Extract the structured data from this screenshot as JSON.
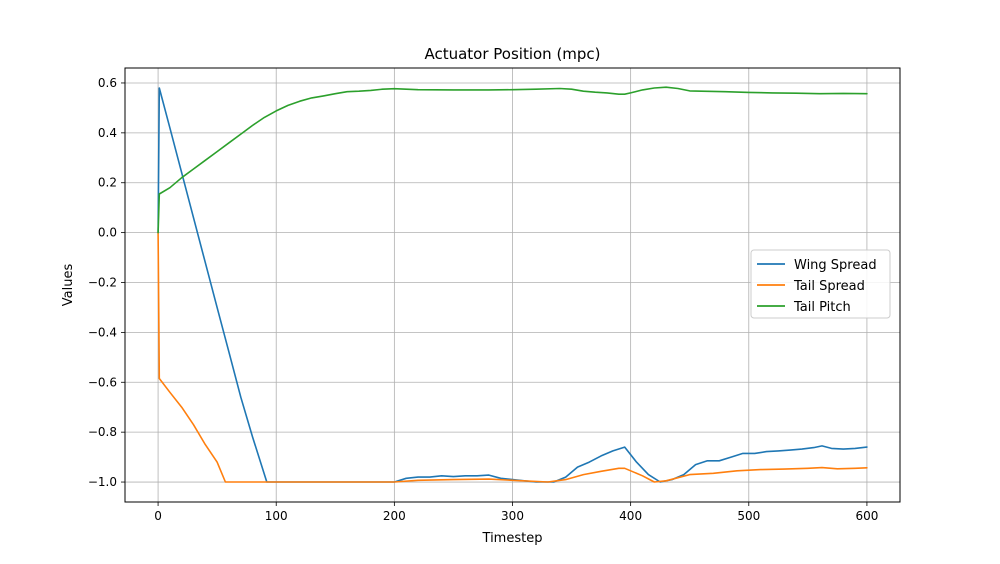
{
  "chart_data": {
    "type": "line",
    "title": "Actuator Position (mpc)",
    "xlabel": "Timestep",
    "ylabel": "Values",
    "xlim": [
      -28,
      628
    ],
    "ylim": [
      -1.08,
      0.66
    ],
    "x_ticks": [
      0,
      100,
      200,
      300,
      400,
      500,
      600
    ],
    "y_ticks": [
      0.6,
      0.4,
      0.2,
      0.0,
      -0.2,
      -0.4,
      -0.6,
      -0.8,
      -1.0
    ],
    "y_tick_labels": [
      "0.6",
      "0.4",
      "0.2",
      "0.0",
      "−0.2",
      "−0.4",
      "−0.6",
      "−0.8",
      "−1.0"
    ],
    "grid": true,
    "legend_position": "center-right",
    "series": [
      {
        "name": "Wing Spread",
        "color": "#1f77b4",
        "points": [
          [
            0,
            0.0
          ],
          [
            1,
            0.58
          ],
          [
            10,
            0.42
          ],
          [
            20,
            0.24
          ],
          [
            30,
            0.06
          ],
          [
            40,
            -0.12
          ],
          [
            50,
            -0.3
          ],
          [
            60,
            -0.48
          ],
          [
            70,
            -0.66
          ],
          [
            80,
            -0.82
          ],
          [
            92,
            -1.0
          ],
          [
            100,
            -1.0
          ],
          [
            150,
            -1.0
          ],
          [
            200,
            -1.0
          ],
          [
            210,
            -0.985
          ],
          [
            220,
            -0.98
          ],
          [
            230,
            -0.98
          ],
          [
            240,
            -0.975
          ],
          [
            250,
            -0.978
          ],
          [
            260,
            -0.975
          ],
          [
            270,
            -0.975
          ],
          [
            280,
            -0.972
          ],
          [
            290,
            -0.985
          ],
          [
            300,
            -0.99
          ],
          [
            310,
            -0.995
          ],
          [
            320,
            -1.0
          ],
          [
            335,
            -1.0
          ],
          [
            345,
            -0.98
          ],
          [
            355,
            -0.94
          ],
          [
            365,
            -0.92
          ],
          [
            375,
            -0.895
          ],
          [
            385,
            -0.875
          ],
          [
            395,
            -0.86
          ],
          [
            405,
            -0.92
          ],
          [
            415,
            -0.97
          ],
          [
            425,
            -1.0
          ],
          [
            435,
            -0.99
          ],
          [
            445,
            -0.97
          ],
          [
            455,
            -0.93
          ],
          [
            465,
            -0.915
          ],
          [
            475,
            -0.915
          ],
          [
            485,
            -0.9
          ],
          [
            495,
            -0.885
          ],
          [
            505,
            -0.885
          ],
          [
            515,
            -0.878
          ],
          [
            525,
            -0.875
          ],
          [
            535,
            -0.872
          ],
          [
            545,
            -0.868
          ],
          [
            555,
            -0.862
          ],
          [
            562,
            -0.855
          ],
          [
            570,
            -0.865
          ],
          [
            580,
            -0.868
          ],
          [
            590,
            -0.865
          ],
          [
            600,
            -0.86
          ]
        ]
      },
      {
        "name": "Tail Spread",
        "color": "#ff7f0e",
        "points": [
          [
            0,
            0.0
          ],
          [
            1,
            -0.585
          ],
          [
            10,
            -0.64
          ],
          [
            20,
            -0.7
          ],
          [
            30,
            -0.77
          ],
          [
            40,
            -0.85
          ],
          [
            50,
            -0.92
          ],
          [
            57,
            -1.0
          ],
          [
            100,
            -1.0
          ],
          [
            150,
            -1.0
          ],
          [
            200,
            -1.0
          ],
          [
            220,
            -0.993
          ],
          [
            250,
            -0.99
          ],
          [
            280,
            -0.988
          ],
          [
            300,
            -0.993
          ],
          [
            330,
            -1.0
          ],
          [
            345,
            -0.99
          ],
          [
            360,
            -0.97
          ],
          [
            375,
            -0.957
          ],
          [
            390,
            -0.945
          ],
          [
            395,
            -0.945
          ],
          [
            410,
            -0.975
          ],
          [
            420,
            -1.0
          ],
          [
            430,
            -0.995
          ],
          [
            450,
            -0.97
          ],
          [
            470,
            -0.965
          ],
          [
            490,
            -0.955
          ],
          [
            510,
            -0.95
          ],
          [
            530,
            -0.948
          ],
          [
            550,
            -0.945
          ],
          [
            562,
            -0.942
          ],
          [
            575,
            -0.947
          ],
          [
            590,
            -0.945
          ],
          [
            600,
            -0.943
          ]
        ]
      },
      {
        "name": "Tail Pitch",
        "color": "#2ca02c",
        "points": [
          [
            0,
            0.0
          ],
          [
            1,
            0.155
          ],
          [
            10,
            0.18
          ],
          [
            20,
            0.22
          ],
          [
            30,
            0.255
          ],
          [
            40,
            0.29
          ],
          [
            50,
            0.325
          ],
          [
            60,
            0.36
          ],
          [
            70,
            0.395
          ],
          [
            80,
            0.43
          ],
          [
            90,
            0.462
          ],
          [
            100,
            0.488
          ],
          [
            110,
            0.51
          ],
          [
            120,
            0.527
          ],
          [
            130,
            0.54
          ],
          [
            140,
            0.548
          ],
          [
            150,
            0.557
          ],
          [
            160,
            0.565
          ],
          [
            170,
            0.567
          ],
          [
            180,
            0.57
          ],
          [
            190,
            0.575
          ],
          [
            200,
            0.577
          ],
          [
            210,
            0.575
          ],
          [
            220,
            0.573
          ],
          [
            250,
            0.572
          ],
          [
            280,
            0.572
          ],
          [
            300,
            0.573
          ],
          [
            320,
            0.575
          ],
          [
            340,
            0.578
          ],
          [
            350,
            0.575
          ],
          [
            360,
            0.567
          ],
          [
            370,
            0.563
          ],
          [
            380,
            0.56
          ],
          [
            390,
            0.555
          ],
          [
            395,
            0.555
          ],
          [
            400,
            0.56
          ],
          [
            410,
            0.572
          ],
          [
            420,
            0.58
          ],
          [
            430,
            0.583
          ],
          [
            440,
            0.578
          ],
          [
            450,
            0.568
          ],
          [
            460,
            0.567
          ],
          [
            480,
            0.565
          ],
          [
            500,
            0.562
          ],
          [
            520,
            0.56
          ],
          [
            540,
            0.559
          ],
          [
            560,
            0.557
          ],
          [
            580,
            0.558
          ],
          [
            600,
            0.557
          ]
        ]
      }
    ]
  }
}
